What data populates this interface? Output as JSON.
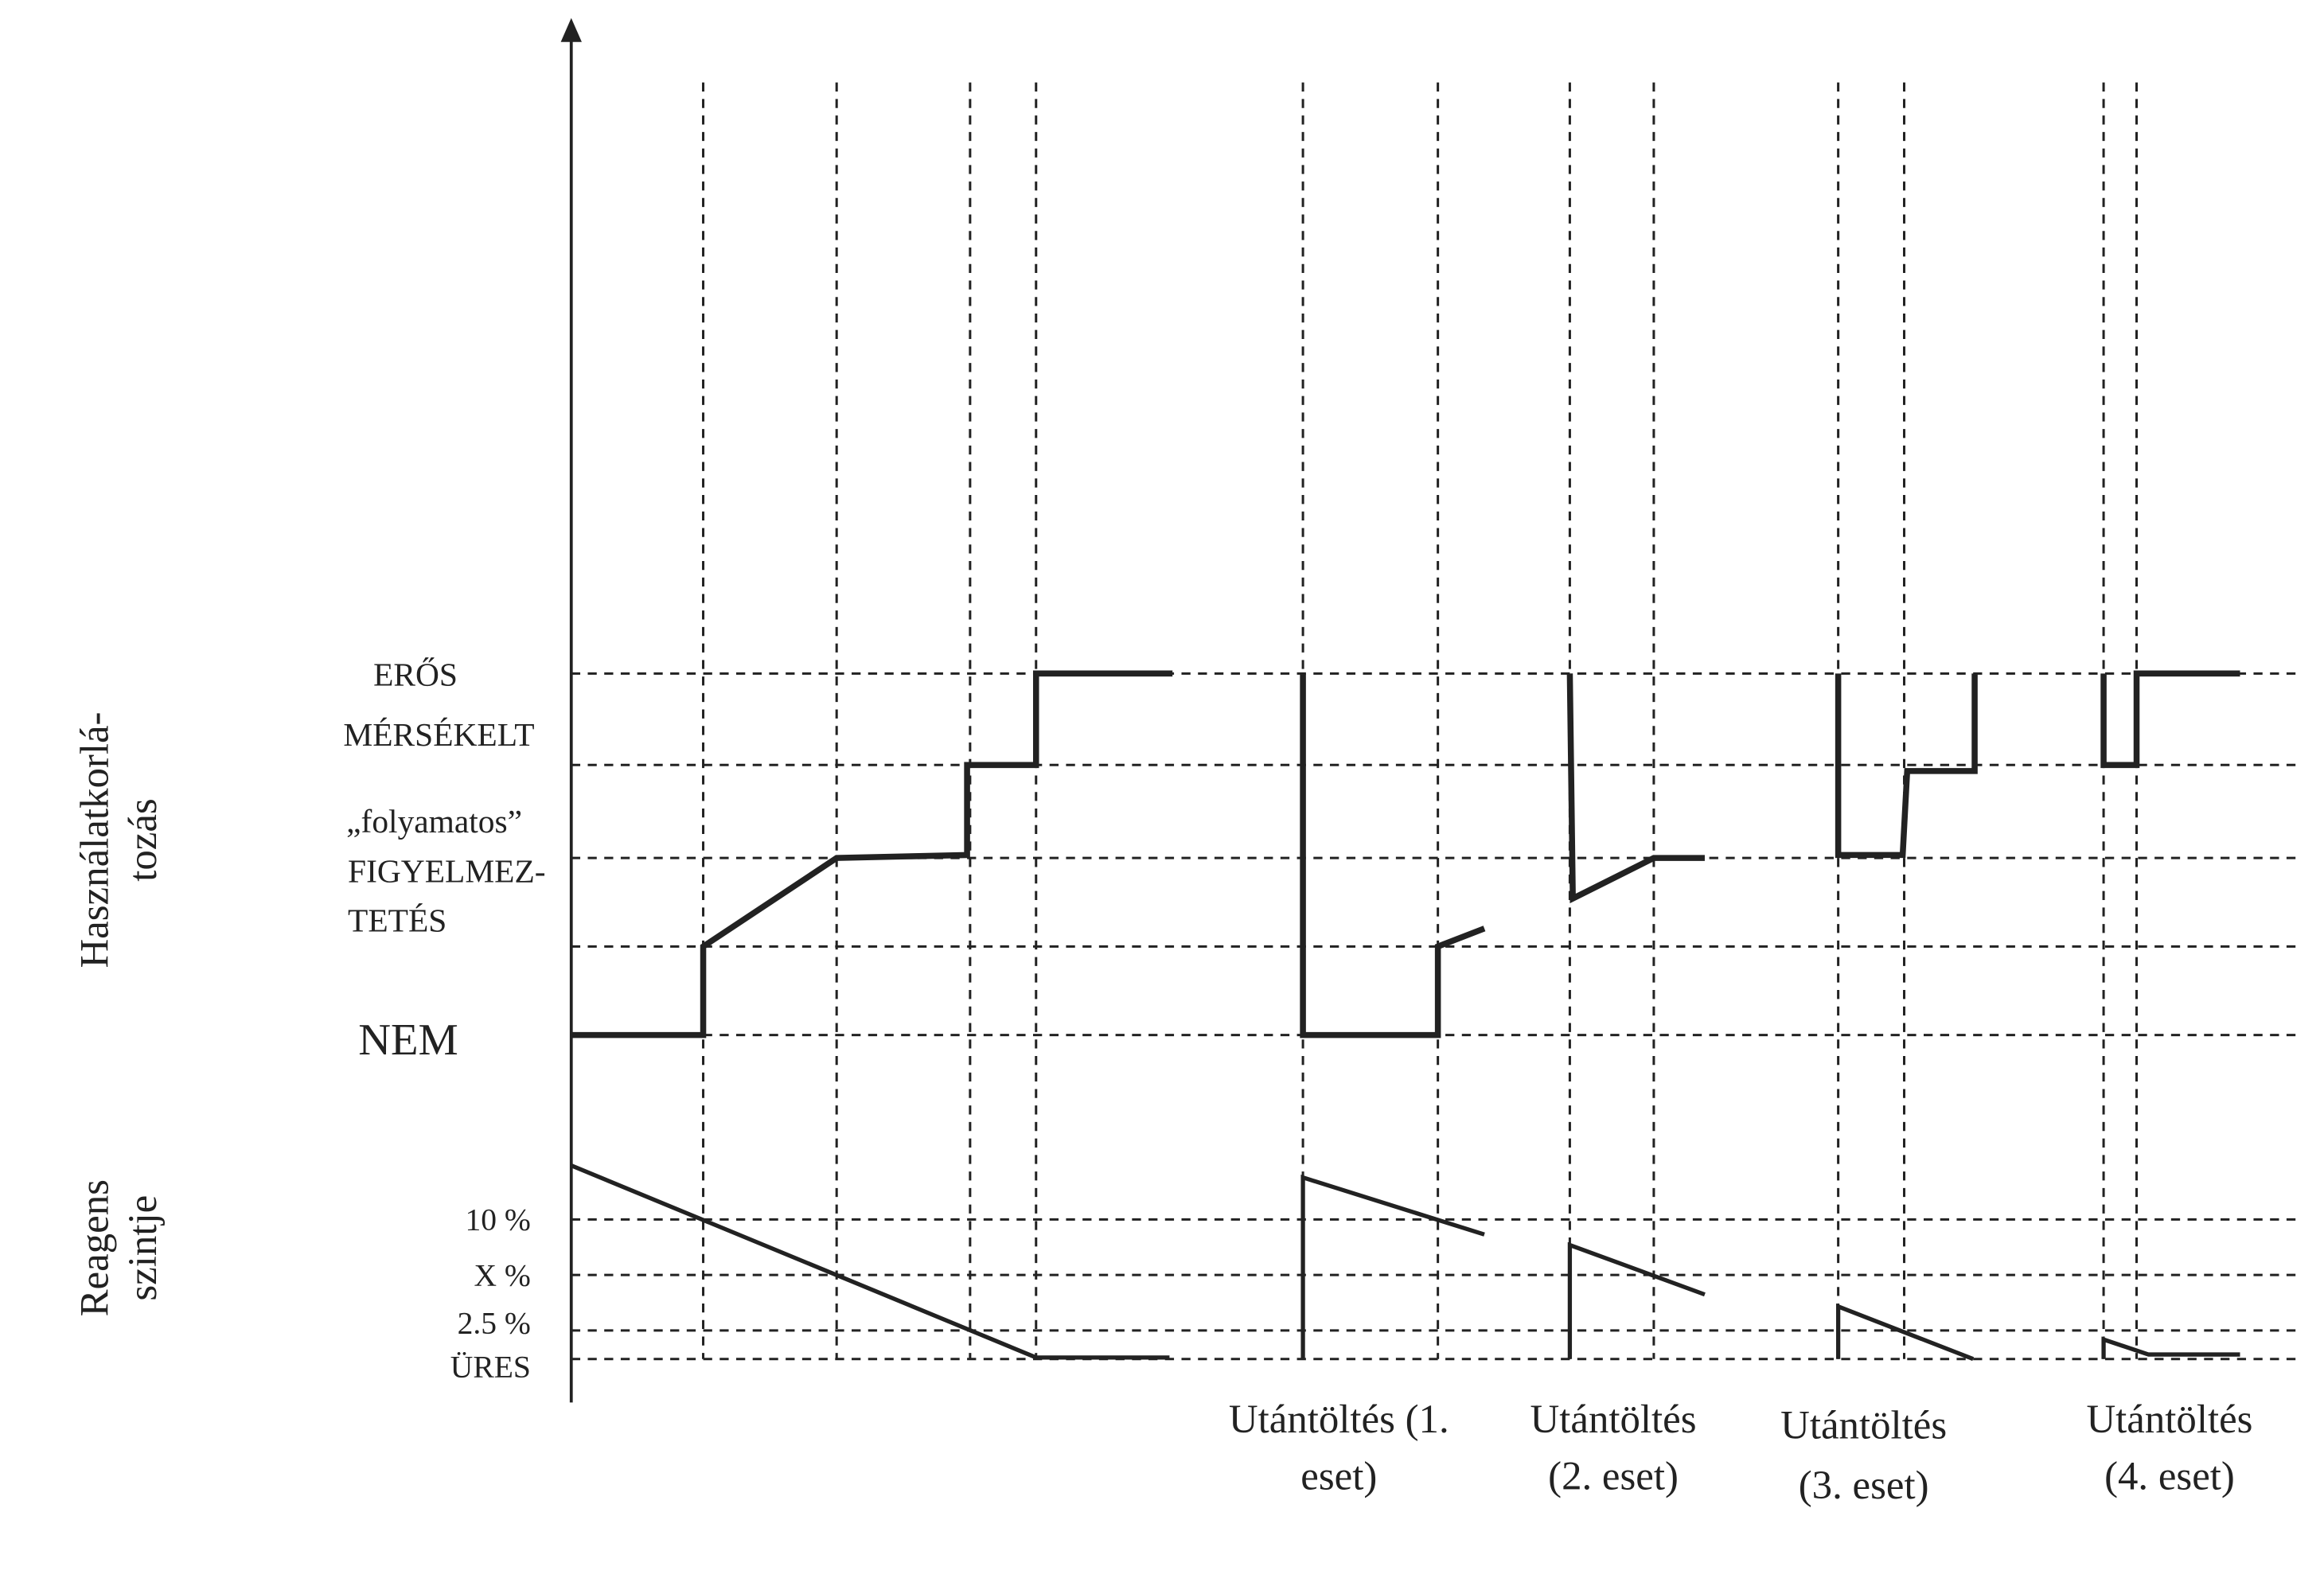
{
  "axis_labels": {
    "usage": [
      "Használatkorlá-",
      "tozás"
    ],
    "reagent": [
      "Reagens",
      "szintje"
    ]
  },
  "usage_levels": [
    "ERŐS",
    "MÉRSÉKELT",
    "„folyamatos”",
    "FIGYELMEZ-",
    "TETÉS",
    "NEM"
  ],
  "reagent_levels": [
    "10 %",
    "X %",
    "2.5 %",
    "ÜRES"
  ],
  "refill_cases": [
    [
      "Utántöltés (1.",
      "eset)"
    ],
    [
      "Utántöltés",
      "(2. eset)"
    ],
    [
      "Utántöltés",
      "(3. eset)"
    ],
    [
      "Utántöltés",
      "(4. eset)"
    ]
  ]
}
